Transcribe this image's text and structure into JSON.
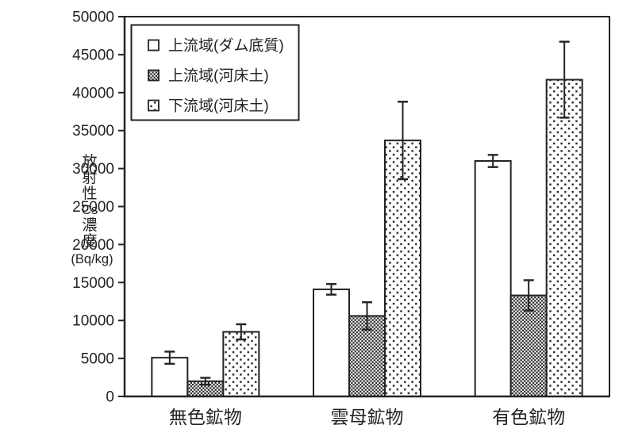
{
  "chart_data": {
    "type": "bar",
    "title": "",
    "ylabel": "放射性Cs濃度",
    "ylabel_unit": "(Bq/kg)",
    "xlabel": "",
    "categories": [
      "無色鉱物",
      "雲母鉱物",
      "有色鉱物"
    ],
    "y_axis": {
      "min": 0,
      "max": 50000,
      "tick_step": 5000,
      "tick_labels": [
        "0",
        "5000",
        "10000",
        "15000",
        "20000",
        "25000",
        "30000",
        "35000",
        "40000",
        "45000",
        "50000"
      ]
    },
    "series": [
      {
        "name": "上流域(ダム底質)",
        "pattern": "open-square",
        "values": [
          5100,
          14100,
          31000
        ],
        "errors": [
          800,
          700,
          800
        ]
      },
      {
        "name": "上流域(河床土)",
        "pattern": "checker-square",
        "values": [
          2000,
          10600,
          13300
        ],
        "errors": [
          450,
          1800,
          2000
        ]
      },
      {
        "name": "下流域(河床土)",
        "pattern": "dots-square",
        "values": [
          8500,
          33700,
          41700
        ],
        "errors": [
          1000,
          5100,
          5000
        ]
      }
    ],
    "legend_position": "top-left-inside",
    "grid": false,
    "error_bars": true,
    "colors": {
      "ink": "#262223",
      "background": "#ffffff"
    }
  }
}
